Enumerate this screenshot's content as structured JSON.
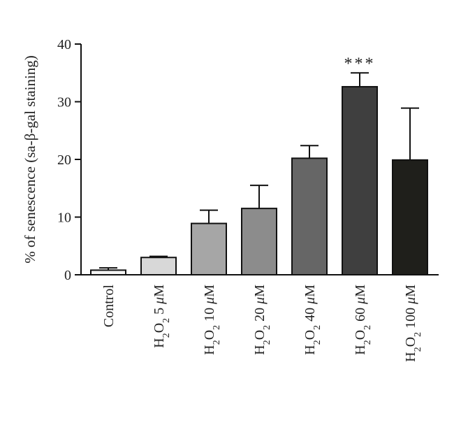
{
  "chart_data": {
    "type": "bar",
    "ylabel": "% of senescence (sa-β-gal staining)",
    "xlabel": "",
    "ylim": [
      0,
      40
    ],
    "yticks": [
      0,
      10,
      20,
      30,
      40
    ],
    "grid": false,
    "categories": [
      {
        "label": "Control"
      },
      {
        "label": "H2O2 5 μM",
        "prefix": "H",
        "sub1": "2",
        "mid": "O",
        "sub2": "2",
        "suffix": " 5 ",
        "unit": "μ",
        "unit_tail": "M"
      },
      {
        "label": "H2O2 10 μM",
        "prefix": "H",
        "sub1": "2",
        "mid": "O",
        "sub2": "2",
        "suffix": " 10 ",
        "unit": "μ",
        "unit_tail": "M"
      },
      {
        "label": "H2O2 20 μM",
        "prefix": "H",
        "sub1": "2",
        "mid": "O",
        "sub2": "2",
        "suffix": " 20 ",
        "unit": "μ",
        "unit_tail": "M"
      },
      {
        "label": "H2O2 40 μM",
        "prefix": "H",
        "sub1": "2",
        "mid": "O",
        "sub2": "2",
        "suffix": " 40 ",
        "unit": "μ",
        "unit_tail": "M"
      },
      {
        "label": "H2O2 60 μM",
        "prefix": "H",
        "sub1": "2",
        "mid": "O",
        "sub2": "2",
        "suffix": " 60 ",
        "unit": "μ",
        "unit_tail": "M"
      },
      {
        "label": "H2O2 100 μM",
        "prefix": "H",
        "sub1": "2",
        "mid": "O",
        "sub2": "2",
        "suffix": " 100 ",
        "unit": "μ",
        "unit_tail": "M"
      }
    ],
    "values": [
      0.8,
      3.0,
      8.9,
      11.5,
      20.2,
      32.6,
      19.9
    ],
    "errors": [
      0.4,
      0.2,
      2.3,
      4.0,
      2.2,
      2.4,
      9.0
    ],
    "colors": [
      "#f4f4f4",
      "#d8d8d8",
      "#a6a6a6",
      "#8c8c8c",
      "#666666",
      "#3f3f3f",
      "#1f1f1b"
    ],
    "significance": [
      null,
      null,
      null,
      null,
      null,
      "***",
      null
    ]
  }
}
